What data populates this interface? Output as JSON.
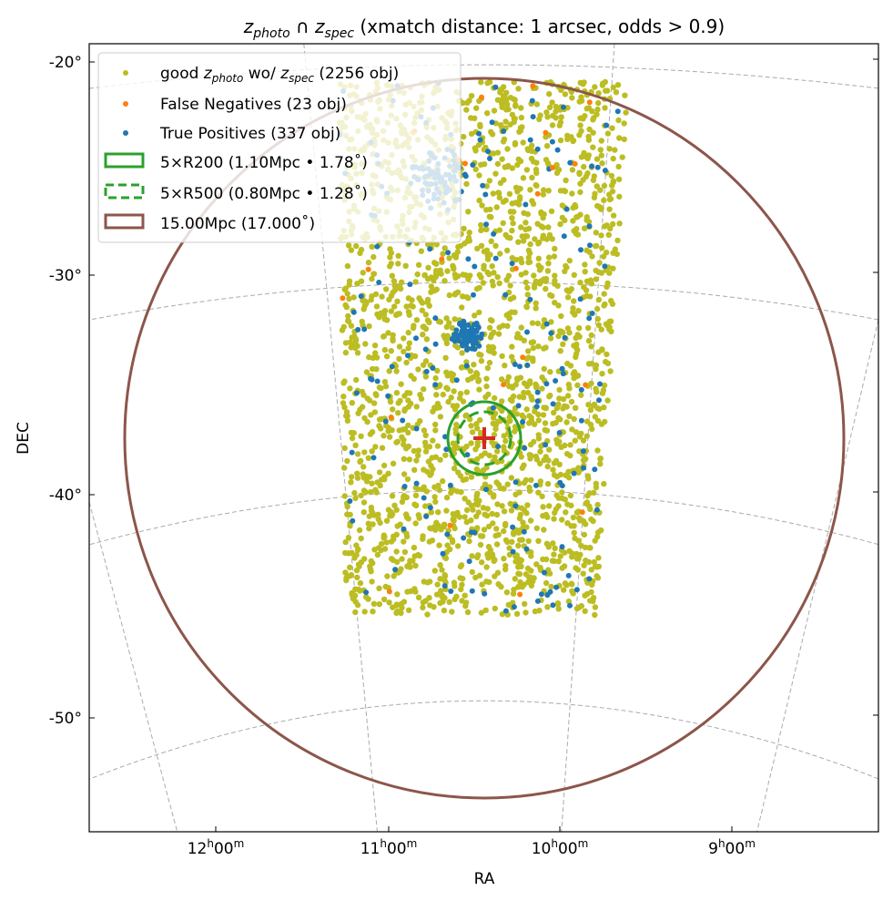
{
  "chart_data": {
    "type": "scatter",
    "title": {
      "z1": "z",
      "s1": "photo",
      "cap": " ∩ ",
      "z2": "z",
      "s2": "spec",
      "rest": " (xmatch distance: 1 arcsec, odds > 0.9)"
    },
    "xlabel": "RA",
    "ylabel": "DEC",
    "projection_center": {
      "ra_h": 10.42,
      "dec_deg": -37.5
    },
    "yticks": [
      "-20°",
      "-30°",
      "-40°",
      "-50°"
    ],
    "yticks_values": [
      -20,
      -30,
      -40,
      -50
    ],
    "xticks": [
      {
        "h": "12",
        "m": "00"
      },
      {
        "h": "11",
        "m": "00"
      },
      {
        "h": "10",
        "m": "00"
      },
      {
        "h": "9",
        "m": "00"
      }
    ],
    "xticks_values_h": [
      12,
      11,
      10,
      9
    ],
    "grid": true,
    "legend_position": "upper-left",
    "series": [
      {
        "name": "good z_photo wo/ z_spec",
        "count": 2256,
        "color": "#bcbd22",
        "marker": "point",
        "label": {
          "a": "good ",
          "z1": "z",
          "s1": "photo",
          "b": " wo/ ",
          "z2": "z",
          "s2": "spec",
          "c": " (2256 obj)"
        }
      },
      {
        "name": "False Negatives",
        "count": 23,
        "color": "#ff7f0e",
        "marker": "point",
        "label": "False Negatives (23 obj)"
      },
      {
        "name": "True Positives",
        "count": 337,
        "color": "#1f77b4",
        "marker": "point",
        "label": "True Positives (337 obj)"
      },
      {
        "name": "5×R200",
        "color": "#2ca02c",
        "style": "solid",
        "radius_deg": 1.78,
        "label": "5×R200 (1.10Mpc • 1.78˚)"
      },
      {
        "name": "5×R500",
        "color": "#2ca02c",
        "style": "dashed",
        "radius_deg": 1.28,
        "label": "5×R500 (0.80Mpc • 1.28˚)"
      },
      {
        "name": "15.00Mpc",
        "color": "#8c564b",
        "style": "solid",
        "radius_deg": 17.0,
        "label": "15.00Mpc (17.000˚)"
      }
    ],
    "cluster_center_marker": {
      "color": "#d62728",
      "symbol": "+"
    }
  }
}
